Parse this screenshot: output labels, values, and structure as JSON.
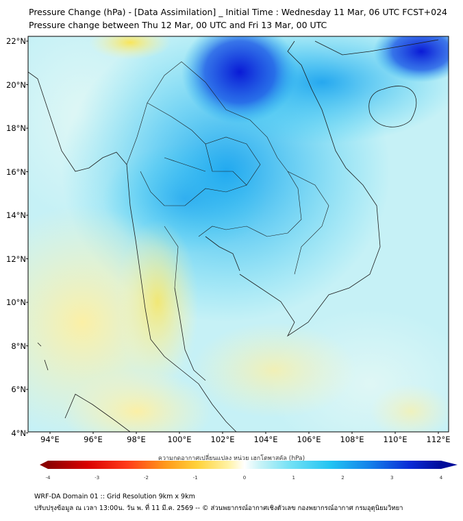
{
  "title_line1": "Pressure Change (hPa) - [Data Assimilation] _ Initial Time : Wednesday 11 Mar, 06 UTC FCST+024",
  "title_line2": "Pressure change between Thu 12 Mar, 00 UTC and Fri 13 Mar, 00 UTC",
  "y_ticks": [
    "22°N",
    "20°N",
    "18°N",
    "16°N",
    "14°N",
    "12°N",
    "10°N",
    "8°N",
    "6°N",
    "4°N"
  ],
  "x_ticks": [
    "94°E",
    "96°E",
    "98°E",
    "100°E",
    "102°E",
    "104°E",
    "106°E",
    "108°E",
    "110°E",
    "112°E"
  ],
  "colorbar": {
    "label": "ความกดอากาศเปลี่ยนแปลง หน่วย เฮกโตพาสคัล (hPa)",
    "ticks": [
      "-4",
      "-3",
      "-2",
      "-1",
      "0",
      "1",
      "2",
      "3",
      "4"
    ],
    "range": [
      -4,
      4
    ]
  },
  "map": {
    "lon_range": [
      93,
      112.5
    ],
    "lat_range": [
      4,
      22.2
    ]
  },
  "footer_line1": "WRF-DA Domain 01 :: Grid Resolution 9km x 9km",
  "footer_line2": "ปรับปรุงข้อมูล ณ เวลา 13:00น. วัน พ. ที่ 11 มี.ค. 2569 -- © ส่วนพยากรณ์อากาศเชิงตัวเลข กองพยากรณ์อากาศ กรมอุตุนิยมวิทยา",
  "colors": {
    "blue_dark": "#0a1ad6",
    "blue": "#1aa9f0",
    "cyan": "#2fcdf5",
    "light_cyan": "#9fe6f7",
    "pale": "#dff7f5",
    "yellow_light": "#fbf4b3",
    "yellow": "#f8e55a"
  }
}
